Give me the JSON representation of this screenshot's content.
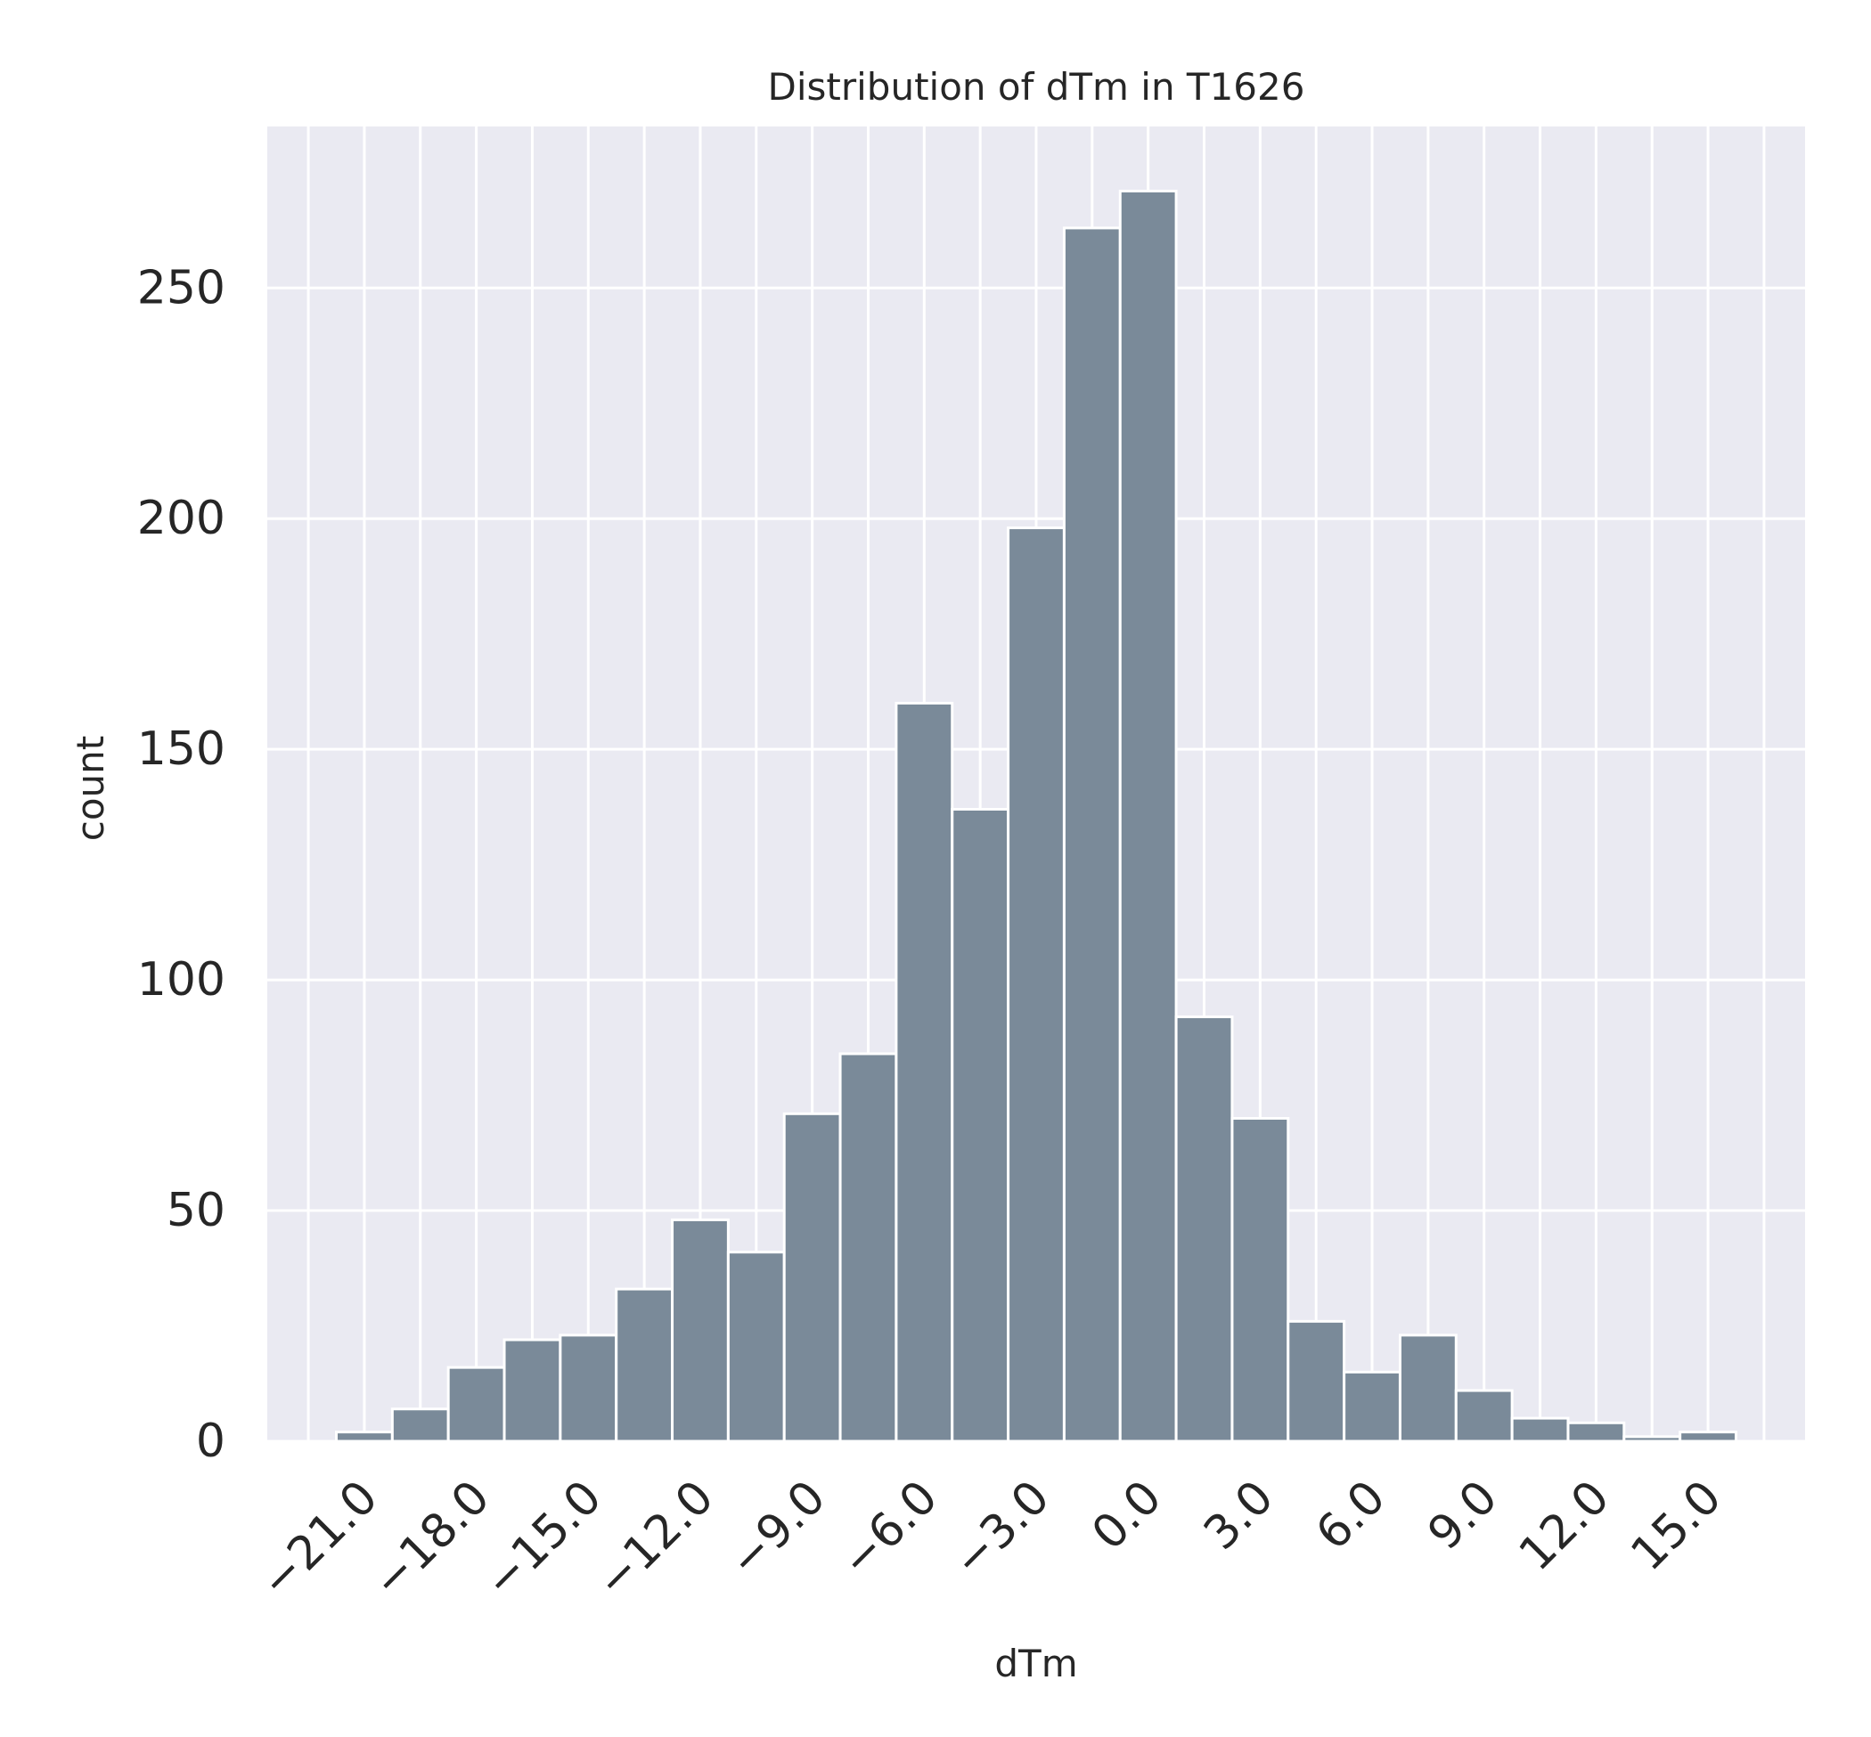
{
  "chart_data": {
    "type": "bar",
    "title": "Distribution of dTm in T1626",
    "xlabel": "dTm",
    "ylabel": "count",
    "bin_width": 1.5,
    "bins": [
      {
        "x0": -21.75,
        "count": 2
      },
      {
        "x0": -20.25,
        "count": 7
      },
      {
        "x0": -18.75,
        "count": 16
      },
      {
        "x0": -17.25,
        "count": 22
      },
      {
        "x0": -15.75,
        "count": 23
      },
      {
        "x0": -14.25,
        "count": 33
      },
      {
        "x0": -12.75,
        "count": 48
      },
      {
        "x0": -11.25,
        "count": 41
      },
      {
        "x0": -9.75,
        "count": 71
      },
      {
        "x0": -8.25,
        "count": 84
      },
      {
        "x0": -6.75,
        "count": 160
      },
      {
        "x0": -5.25,
        "count": 137
      },
      {
        "x0": -3.75,
        "count": 198
      },
      {
        "x0": -2.25,
        "count": 263
      },
      {
        "x0": -0.75,
        "count": 271
      },
      {
        "x0": 0.75,
        "count": 92
      },
      {
        "x0": 2.25,
        "count": 70
      },
      {
        "x0": 3.75,
        "count": 26
      },
      {
        "x0": 5.25,
        "count": 15
      },
      {
        "x0": 6.75,
        "count": 23
      },
      {
        "x0": 8.25,
        "count": 11
      },
      {
        "x0": 9.75,
        "count": 5
      },
      {
        "x0": 11.25,
        "count": 4
      },
      {
        "x0": 12.75,
        "count": 1
      },
      {
        "x0": 14.25,
        "count": 2
      }
    ],
    "xlim": [
      -23.6,
      17.6
    ],
    "ylim": [
      0,
      285
    ],
    "x_ticks": [
      -21,
      -18,
      -15,
      -12,
      -9,
      -6,
      -3,
      0,
      3,
      6,
      9,
      12,
      15
    ],
    "x_tick_labels": [
      "−21.0",
      "−18.0",
      "−15.0",
      "−12.0",
      "−9.0",
      "−6.0",
      "−3.0",
      "0.0",
      "3.0",
      "6.0",
      "9.0",
      "12.0",
      "15.0"
    ],
    "x_minor_gridlines": [
      -22.5,
      -19.5,
      -16.5,
      -13.5,
      -10.5,
      -7.5,
      -4.5,
      -1.5,
      1.5,
      4.5,
      7.5,
      10.5,
      13.5,
      16.5
    ],
    "y_ticks": [
      0,
      50,
      100,
      150,
      200,
      250
    ],
    "y_tick_labels": [
      "0",
      "50",
      "100",
      "150",
      "200",
      "250"
    ],
    "grid": true,
    "colors": {
      "background": "#eaeaf2",
      "bar": "#7a8a99",
      "bar_edge": "#ffffff",
      "grid": "#ffffff",
      "text": "#262626"
    }
  }
}
